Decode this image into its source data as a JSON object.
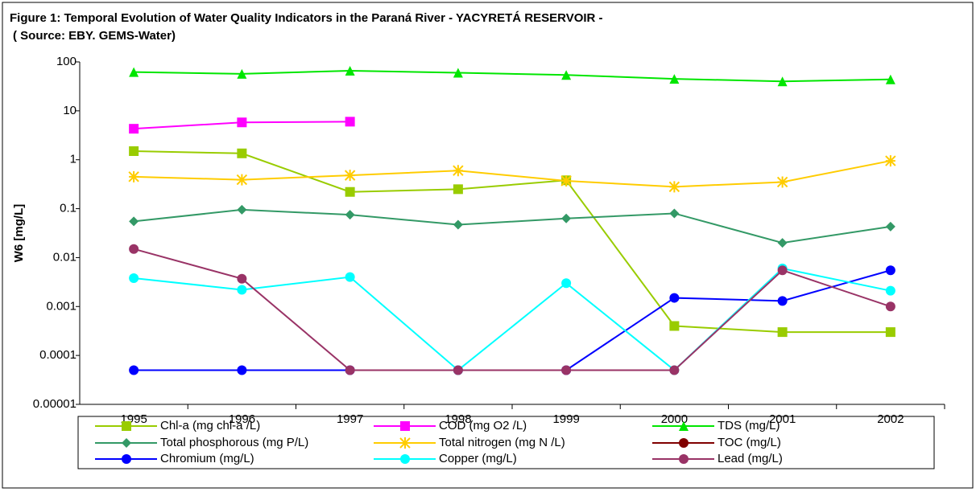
{
  "chart_data": {
    "type": "line",
    "title": "Figure 1: Temporal Evolution of Water Quality Indicators in the Paraná River - YACYRETÁ RESERVOIR -",
    "subtitle": "( Source: EBY. GEMS-Water)",
    "y_label": "W6 [mg/L]",
    "y_scale": "log",
    "categories": [
      "1995",
      "1996",
      "1997",
      "1998",
      "1999",
      "2000",
      "2001",
      "2002"
    ],
    "ylim": [
      1e-05,
      100
    ],
    "yticks": [
      100,
      10,
      1,
      0.1,
      0.01,
      0.001,
      0.0001,
      1e-05
    ],
    "grid": false,
    "legend": "bottom",
    "series": [
      {
        "name": "Chl-a (mg chl-a /L)",
        "color": "#99cc00",
        "marker": "square",
        "values": [
          1.5,
          1.35,
          0.22,
          0.25,
          0.38,
          0.0004,
          0.0003,
          0.0003
        ]
      },
      {
        "name": "COD (mg O2 /L)",
        "color": "#ff00ff",
        "marker": "square",
        "values": [
          4.3,
          5.8,
          6.0,
          null,
          null,
          null,
          null,
          null
        ]
      },
      {
        "name": "TDS (mg/L)",
        "color": "#00e600",
        "marker": "triangle",
        "values": [
          62,
          57,
          66,
          60,
          54,
          45,
          40,
          44
        ]
      },
      {
        "name": "Total phosphorous (mg P/L)",
        "color": "#339966",
        "marker": "diamond",
        "values": [
          0.055,
          0.095,
          0.075,
          0.047,
          0.063,
          0.08,
          0.02,
          0.043
        ]
      },
      {
        "name": "Total nitrogen (mg N /L)",
        "color": "#ffcc00",
        "marker": "asterisk",
        "values": [
          0.45,
          0.39,
          0.48,
          0.6,
          0.37,
          0.28,
          0.35,
          0.95
        ]
      },
      {
        "name": "TOC (mg/L)",
        "color": "#800000",
        "marker": "circle",
        "values": [
          null,
          null,
          null,
          null,
          null,
          null,
          null,
          null
        ]
      },
      {
        "name": "Chromium (mg/L)",
        "color": "#0000ff",
        "marker": "circle",
        "values": [
          5e-05,
          5e-05,
          5e-05,
          5e-05,
          5e-05,
          0.0015,
          0.0013,
          0.0055
        ]
      },
      {
        "name": "Copper (mg/L)",
        "color": "#00ffff",
        "marker": "circle",
        "values": [
          0.0038,
          0.0022,
          0.004,
          5e-05,
          0.003,
          5e-05,
          0.006,
          0.0021
        ]
      },
      {
        "name": "Lead (mg/L)",
        "color": "#993366",
        "marker": "circle",
        "values": [
          0.015,
          0.0037,
          5e-05,
          5e-05,
          5e-05,
          5e-05,
          0.0055,
          0.001
        ]
      }
    ]
  }
}
